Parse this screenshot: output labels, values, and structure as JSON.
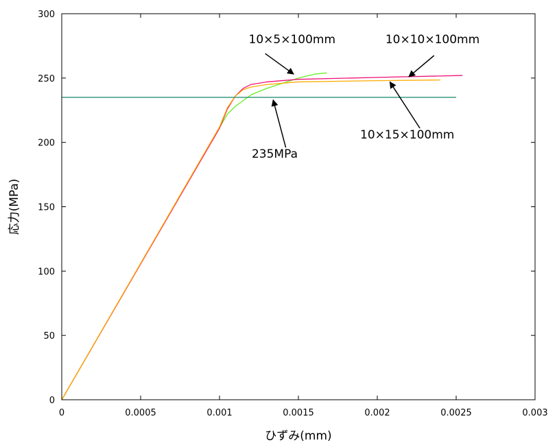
{
  "chart_data": {
    "type": "line",
    "title": "",
    "xlabel": "ひずみ(mm)",
    "ylabel": "応力(MPa)",
    "xlim": [
      0,
      0.003
    ],
    "ylim": [
      0,
      300
    ],
    "x_ticks": [
      0,
      0.0005,
      0.001,
      0.0015,
      0.002,
      0.0025,
      0.003
    ],
    "x_tick_labels": [
      "0",
      "0.0005",
      "0.001",
      "0.0015",
      "0.002",
      "0.0025",
      "0.003"
    ],
    "y_ticks": [
      0,
      50,
      100,
      150,
      200,
      250,
      300
    ],
    "y_tick_labels": [
      "0",
      "50",
      "100",
      "150",
      "200",
      "250",
      "300"
    ],
    "grid": false,
    "series": [
      {
        "name": "10×5×100mm",
        "color": "#66ee22",
        "x": [
          0,
          0.00105,
          0.0011,
          0.0012,
          0.0013,
          0.0014,
          0.0015,
          0.0016,
          0.00168
        ],
        "y": [
          0,
          222,
          228,
          237,
          242,
          246,
          250,
          253,
          254
        ]
      },
      {
        "name": "10×10×100mm",
        "color": "#ee1177",
        "x": [
          0,
          0.001,
          0.00105,
          0.0011,
          0.00115,
          0.0012,
          0.0013,
          0.0015,
          0.002,
          0.00254
        ],
        "y": [
          0,
          211,
          226,
          236,
          242,
          245,
          247,
          249,
          250.5,
          252
        ]
      },
      {
        "name": "10×15×100mm",
        "color": "#ffaa00",
        "x": [
          0,
          0.001,
          0.00105,
          0.0011,
          0.00115,
          0.0012,
          0.0013,
          0.0015,
          0.002,
          0.0024
        ],
        "y": [
          0,
          212,
          227,
          236,
          241,
          243,
          245,
          247,
          248,
          248.5
        ]
      },
      {
        "name": "235MPa",
        "color": "#118866",
        "x": [
          0,
          0.0025
        ],
        "y": [
          235,
          235
        ]
      }
    ],
    "annotations": [
      {
        "text": "10×5×100mm",
        "label_x": 0.00146,
        "label_y": 277,
        "anchor": "middle",
        "arrow_from": [
          0.00129,
          269
        ],
        "arrow_to": [
          0.00147,
          253
        ]
      },
      {
        "text": "10×10×100mm",
        "label_x": 0.00235,
        "label_y": 277,
        "anchor": "middle",
        "arrow_from": [
          0.00236,
          267.5
        ],
        "arrow_to": [
          0.0022,
          251
        ]
      },
      {
        "text": "10×15×100mm",
        "label_x": 0.00219,
        "label_y": 203,
        "anchor": "middle",
        "arrow_from": [
          0.00227,
          211
        ],
        "arrow_to": [
          0.00208,
          247
        ]
      },
      {
        "text": "235MPa",
        "label_x": 0.00135,
        "label_y": 188,
        "anchor": "middle",
        "arrow_from": [
          0.00142,
          196
        ],
        "arrow_to": [
          0.00134,
          233
        ]
      }
    ]
  }
}
